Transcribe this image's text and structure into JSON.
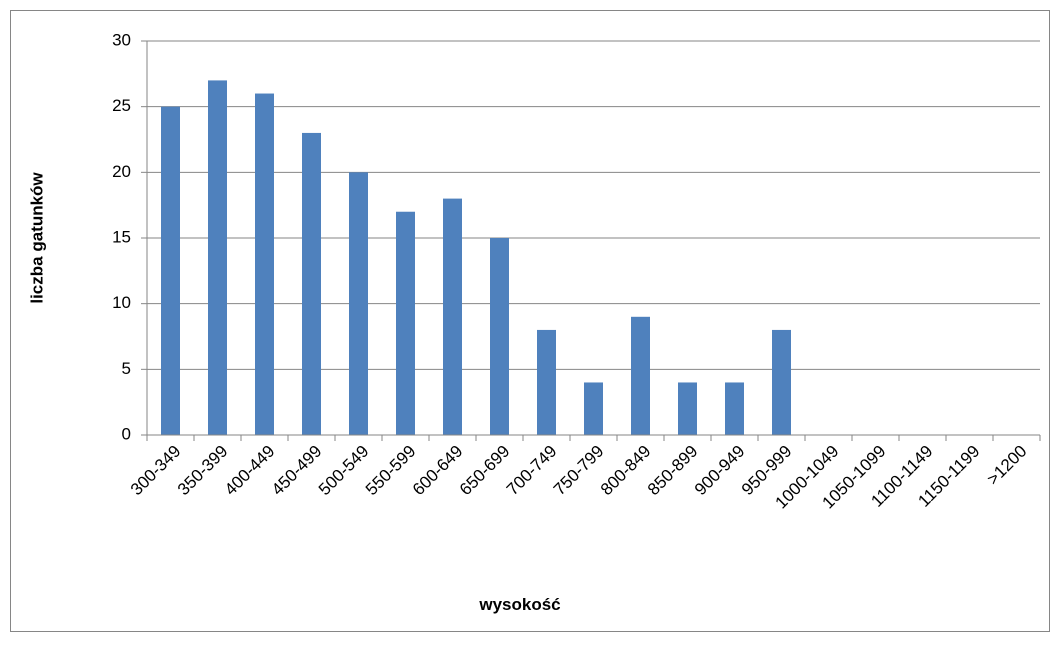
{
  "chart_data": {
    "type": "bar",
    "xlabel": "wysokość",
    "ylabel": "liczba gatunków",
    "categories": [
      "300-349",
      "350-399",
      "400-449",
      "450-499",
      "500-549",
      "550-599",
      "600-649",
      "650-699",
      "700-749",
      "750-799",
      "800-849",
      "850-899",
      "900-949",
      "950-999",
      "1000-1049",
      "1050-1099",
      "1100-1149",
      "1150-1199",
      ">1200"
    ],
    "values": [
      25,
      27,
      26,
      23,
      20,
      17,
      18,
      15,
      8,
      4,
      9,
      4,
      4,
      8,
      0,
      0,
      0,
      0,
      0
    ],
    "color": "#4f81bd",
    "ylim": [
      0,
      30
    ],
    "yticks": [
      0,
      5,
      10,
      15,
      20,
      25,
      30
    ],
    "grid": true
  }
}
